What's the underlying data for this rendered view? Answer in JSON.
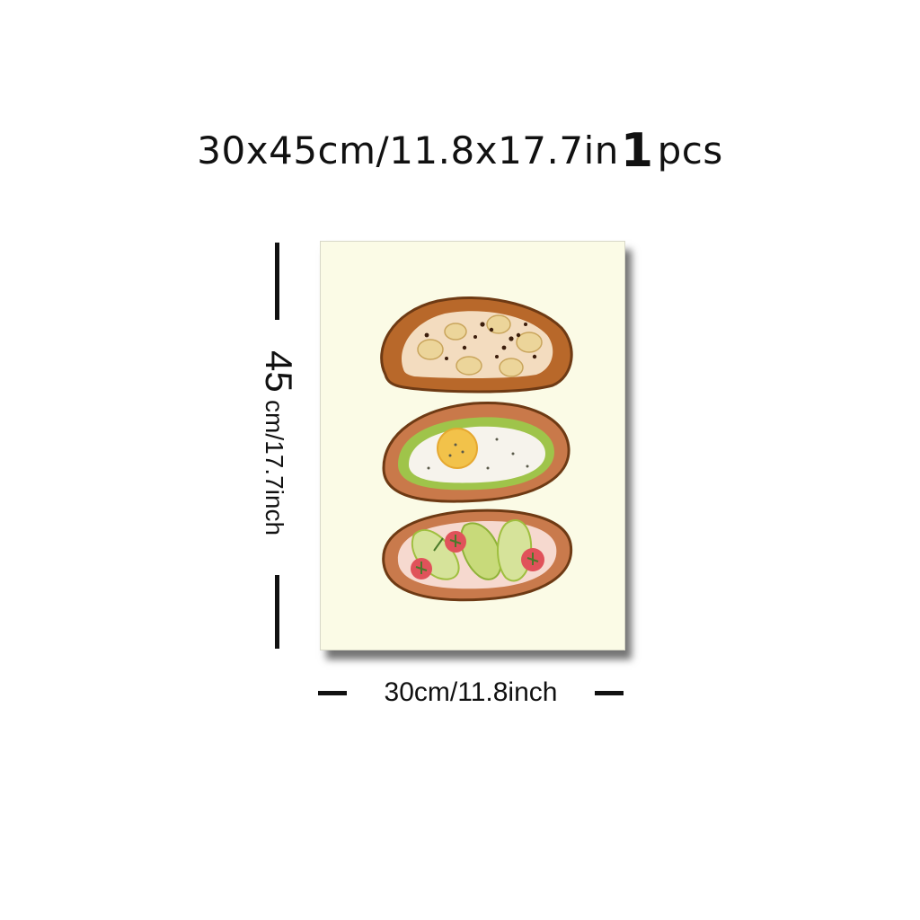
{
  "title": {
    "dims": "30x45cm/11.8x17.7in",
    "count": "1",
    "unit": "pcs"
  },
  "height_label": {
    "num": "45",
    "text": "cm/17.7inch"
  },
  "width_label": "30cm/11.8inch",
  "colors": {
    "poster_bg": "#fbfbe6",
    "crust": "#b8682a",
    "egg_white": "#f6f3ec",
    "yolk": "#f2c24a",
    "avocado": "#a9c84e",
    "tomato": "#e0525a"
  }
}
